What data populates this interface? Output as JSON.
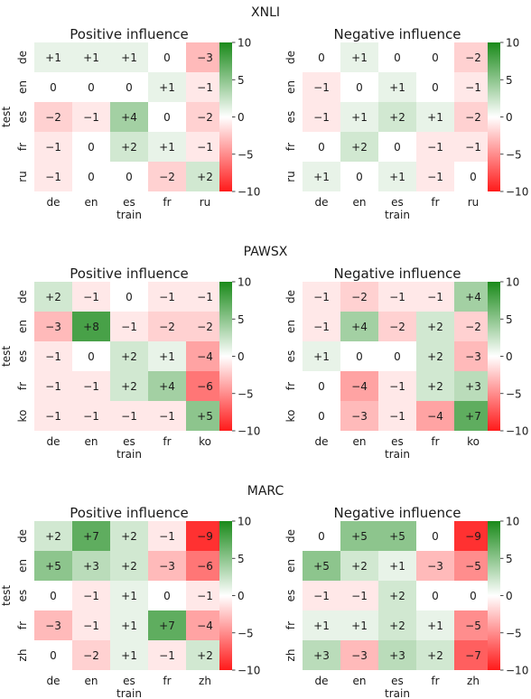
{
  "colorbar": {
    "ticks": [
      10,
      5,
      0,
      -5,
      -10
    ],
    "tick_labels": [
      "10",
      "5",
      "0",
      "−5",
      "−10"
    ],
    "vmin": -10,
    "vmax": 10,
    "pos_color": "#1a8a1a",
    "neg_color": "#ff1a1a",
    "zero_color": "#ffffff"
  },
  "chart_data": [
    {
      "type": "heatmap",
      "group": "XNLI",
      "title": "Positive influence",
      "xlabel": "train",
      "ylabel": "test",
      "x": [
        "de",
        "en",
        "es",
        "fr",
        "ru"
      ],
      "y": [
        "de",
        "en",
        "es",
        "fr",
        "ru"
      ],
      "values": [
        [
          1,
          1,
          1,
          0,
          -3
        ],
        [
          0,
          0,
          0,
          1,
          -1
        ],
        [
          -2,
          -1,
          4,
          0,
          -2
        ],
        [
          -1,
          0,
          2,
          1,
          -1
        ],
        [
          -1,
          0,
          0,
          -2,
          2
        ]
      ]
    },
    {
      "type": "heatmap",
      "group": "XNLI",
      "title": "Negative influence",
      "xlabel": "train",
      "ylabel": "test",
      "x": [
        "de",
        "en",
        "es",
        "fr",
        "ru"
      ],
      "y": [
        "de",
        "en",
        "es",
        "fr",
        "ru"
      ],
      "values": [
        [
          0,
          1,
          0,
          0,
          -2
        ],
        [
          -1,
          0,
          1,
          0,
          -1
        ],
        [
          -1,
          1,
          2,
          1,
          -2
        ],
        [
          0,
          2,
          0,
          -1,
          -1
        ],
        [
          1,
          0,
          1,
          -1,
          0
        ]
      ]
    },
    {
      "type": "heatmap",
      "group": "PAWSX",
      "title": "Positive influence",
      "xlabel": "train",
      "ylabel": "test",
      "x": [
        "de",
        "en",
        "es",
        "fr",
        "ko"
      ],
      "y": [
        "de",
        "en",
        "es",
        "fr",
        "ko"
      ],
      "values": [
        [
          2,
          -1,
          0,
          -1,
          -1
        ],
        [
          -3,
          8,
          -1,
          -2,
          -2
        ],
        [
          -1,
          0,
          2,
          1,
          -4
        ],
        [
          -1,
          -1,
          2,
          4,
          -6
        ],
        [
          -1,
          -1,
          -1,
          -1,
          5
        ]
      ]
    },
    {
      "type": "heatmap",
      "group": "PAWSX",
      "title": "Negative influence",
      "xlabel": "train",
      "ylabel": "test",
      "x": [
        "de",
        "en",
        "es",
        "fr",
        "ko"
      ],
      "y": [
        "de",
        "en",
        "es",
        "fr",
        "ko"
      ],
      "values": [
        [
          -1,
          -2,
          -1,
          -1,
          4
        ],
        [
          -1,
          4,
          -2,
          2,
          -2
        ],
        [
          1,
          0,
          0,
          2,
          -3
        ],
        [
          0,
          -4,
          -1,
          2,
          3
        ],
        [
          0,
          -3,
          -1,
          -4,
          7
        ]
      ]
    },
    {
      "type": "heatmap",
      "group": "MARC",
      "title": "Positive influence",
      "xlabel": "train",
      "ylabel": "test",
      "x": [
        "de",
        "en",
        "es",
        "fr",
        "zh"
      ],
      "y": [
        "de",
        "en",
        "es",
        "fr",
        "zh"
      ],
      "values": [
        [
          2,
          7,
          2,
          -1,
          -9
        ],
        [
          5,
          3,
          2,
          -3,
          -6
        ],
        [
          0,
          -1,
          1,
          0,
          -1
        ],
        [
          -3,
          -1,
          1,
          7,
          -4
        ],
        [
          0,
          -2,
          1,
          -1,
          2
        ]
      ]
    },
    {
      "type": "heatmap",
      "group": "MARC",
      "title": "Negative influence",
      "xlabel": "train",
      "ylabel": "test",
      "x": [
        "de",
        "en",
        "es",
        "fr",
        "zh"
      ],
      "y": [
        "de",
        "en",
        "es",
        "fr",
        "zh"
      ],
      "values": [
        [
          0,
          5,
          5,
          0,
          -9
        ],
        [
          5,
          2,
          1,
          -3,
          -5
        ],
        [
          -1,
          -1,
          2,
          0,
          0
        ],
        [
          1,
          1,
          2,
          1,
          -5
        ],
        [
          3,
          -3,
          3,
          2,
          -7
        ]
      ]
    }
  ]
}
